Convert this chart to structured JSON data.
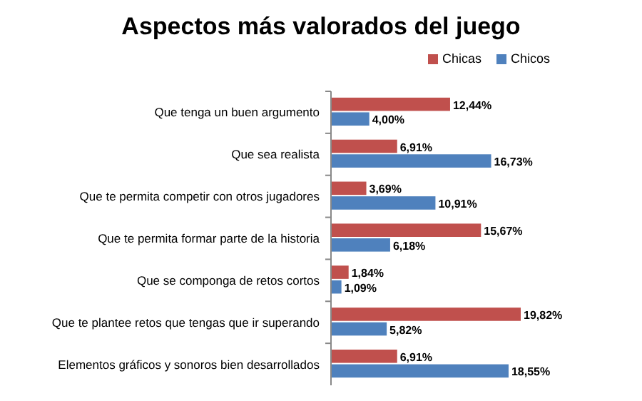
{
  "chart_data": {
    "type": "bar",
    "orientation": "horizontal",
    "title": "Aspectos más valorados del juego",
    "legend": "top right",
    "categories": [
      "Que tenga un buen argumento",
      "Que sea realista",
      "Que te permita competir con otros jugadores",
      "Que te permita formar parte de la historia",
      "Que se componga de retos cortos",
      "Que te plantee retos que tengas que ir superando",
      "Elementos gráficos y sonoros  bien desarrollados"
    ],
    "series": [
      {
        "name": "Chicas",
        "color": "#c0504d",
        "values": [
          12.44,
          6.91,
          3.69,
          15.67,
          1.84,
          19.82,
          6.91
        ],
        "value_labels": [
          "12,44%",
          "6,91%",
          "3,69%",
          "15,67%",
          "1,84%",
          "19,82%",
          "6,91%"
        ]
      },
      {
        "name": "Chicos",
        "color": "#4f81bd",
        "values": [
          4.0,
          16.73,
          10.91,
          6.18,
          1.09,
          5.82,
          18.55
        ],
        "value_labels": [
          "4,00%",
          "16,73%",
          "10,91%",
          "6,18%",
          "1,09%",
          "5,82%",
          "18,55%"
        ]
      }
    ]
  }
}
